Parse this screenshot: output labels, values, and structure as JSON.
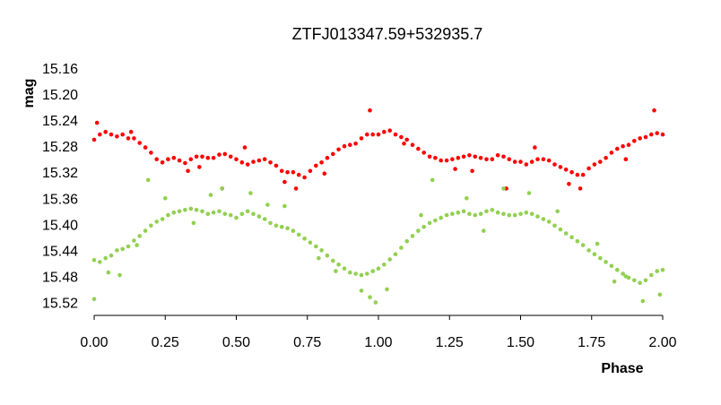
{
  "chart_data": {
    "type": "scatter",
    "title": "ZTFJ013347.59+532935.7",
    "xlabel": "Phase",
    "ylabel": "mag",
    "xlim": [
      0,
      2
    ],
    "ylim": [
      15.16,
      15.54
    ],
    "y_inverted": true,
    "grid": false,
    "legend": "none",
    "x_ticks": [
      "0.00",
      "0.25",
      "0.50",
      "0.75",
      "1.00",
      "1.25",
      "1.50",
      "1.75",
      "2.00"
    ],
    "y_ticks": [
      "15.16",
      "15.20",
      "15.24",
      "15.28",
      "15.32",
      "15.36",
      "15.40",
      "15.44",
      "15.48",
      "15.52"
    ],
    "series": [
      {
        "color": "#ff0000",
        "points": [
          [
            0.0,
            15.27
          ],
          [
            0.02,
            15.262
          ],
          [
            0.04,
            15.258
          ],
          [
            0.06,
            15.262
          ],
          [
            0.08,
            15.265
          ],
          [
            0.1,
            15.262
          ],
          [
            0.12,
            15.268
          ],
          [
            0.14,
            15.268
          ],
          [
            0.16,
            15.275
          ],
          [
            0.18,
            15.282
          ],
          [
            0.2,
            15.29
          ],
          [
            0.22,
            15.3
          ],
          [
            0.24,
            15.305
          ],
          [
            0.26,
            15.3
          ],
          [
            0.28,
            15.298
          ],
          [
            0.3,
            15.302
          ],
          [
            0.32,
            15.306
          ],
          [
            0.34,
            15.3
          ],
          [
            0.36,
            15.296
          ],
          [
            0.38,
            15.296
          ],
          [
            0.4,
            15.298
          ],
          [
            0.42,
            15.298
          ],
          [
            0.44,
            15.293
          ],
          [
            0.46,
            15.292
          ],
          [
            0.48,
            15.296
          ],
          [
            0.5,
            15.3
          ],
          [
            0.52,
            15.305
          ],
          [
            0.54,
            15.308
          ],
          [
            0.56,
            15.304
          ],
          [
            0.58,
            15.302
          ],
          [
            0.6,
            15.3
          ],
          [
            0.62,
            15.305
          ],
          [
            0.64,
            15.31
          ],
          [
            0.66,
            15.318
          ],
          [
            0.68,
            15.32
          ],
          [
            0.7,
            15.32
          ],
          [
            0.72,
            15.324
          ],
          [
            0.74,
            15.328
          ],
          [
            0.76,
            15.318
          ],
          [
            0.78,
            15.31
          ],
          [
            0.8,
            15.305
          ],
          [
            0.82,
            15.298
          ],
          [
            0.84,
            15.292
          ],
          [
            0.86,
            15.285
          ],
          [
            0.88,
            15.28
          ],
          [
            0.9,
            15.278
          ],
          [
            0.92,
            15.276
          ],
          [
            0.94,
            15.268
          ],
          [
            0.96,
            15.262
          ],
          [
            0.98,
            15.262
          ],
          [
            1.0,
            15.262
          ],
          [
            1.02,
            15.258
          ],
          [
            1.04,
            15.256
          ],
          [
            1.06,
            15.262
          ],
          [
            1.08,
            15.266
          ],
          [
            1.1,
            15.27
          ],
          [
            1.12,
            15.278
          ],
          [
            1.14,
            15.284
          ],
          [
            1.16,
            15.29
          ],
          [
            1.18,
            15.296
          ],
          [
            1.2,
            15.298
          ],
          [
            1.22,
            15.302
          ],
          [
            1.24,
            15.302
          ],
          [
            1.26,
            15.3
          ],
          [
            1.28,
            15.298
          ],
          [
            1.3,
            15.296
          ],
          [
            1.32,
            15.294
          ],
          [
            1.34,
            15.296
          ],
          [
            1.36,
            15.298
          ],
          [
            1.38,
            15.3
          ],
          [
            1.4,
            15.3
          ],
          [
            1.42,
            15.294
          ],
          [
            1.44,
            15.296
          ],
          [
            1.46,
            15.3
          ],
          [
            1.48,
            15.304
          ],
          [
            1.5,
            15.304
          ],
          [
            1.52,
            15.308
          ],
          [
            1.54,
            15.304
          ],
          [
            1.56,
            15.3
          ],
          [
            1.58,
            15.3
          ],
          [
            1.6,
            15.302
          ],
          [
            1.62,
            15.308
          ],
          [
            1.64,
            15.312
          ],
          [
            1.66,
            15.316
          ],
          [
            1.68,
            15.32
          ],
          [
            1.7,
            15.324
          ],
          [
            1.72,
            15.324
          ],
          [
            1.74,
            15.314
          ],
          [
            1.76,
            15.308
          ],
          [
            1.78,
            15.304
          ],
          [
            1.8,
            15.298
          ],
          [
            1.82,
            15.29
          ],
          [
            1.84,
            15.284
          ],
          [
            1.86,
            15.28
          ],
          [
            1.88,
            15.278
          ],
          [
            1.9,
            15.272
          ],
          [
            1.92,
            15.268
          ],
          [
            1.94,
            15.266
          ],
          [
            1.96,
            15.262
          ],
          [
            1.98,
            15.26
          ],
          [
            2.0,
            15.262
          ],
          [
            0.01,
            15.244
          ],
          [
            0.13,
            15.258
          ],
          [
            0.37,
            15.312
          ],
          [
            0.45,
            15.345
          ],
          [
            0.53,
            15.282
          ],
          [
            0.71,
            15.345
          ],
          [
            0.81,
            15.322
          ],
          [
            0.97,
            15.225
          ],
          [
            1.09,
            15.276
          ],
          [
            1.27,
            15.315
          ],
          [
            1.45,
            15.345
          ],
          [
            1.55,
            15.282
          ],
          [
            1.71,
            15.345
          ],
          [
            1.87,
            15.3
          ],
          [
            1.97,
            15.225
          ],
          [
            0.33,
            15.318
          ],
          [
            0.67,
            15.335
          ],
          [
            1.33,
            15.318
          ],
          [
            1.67,
            15.338
          ]
        ]
      },
      {
        "color": "#92d050",
        "points": [
          [
            0.0,
            15.455
          ],
          [
            0.02,
            15.458
          ],
          [
            0.04,
            15.452
          ],
          [
            0.06,
            15.448
          ],
          [
            0.08,
            15.44
          ],
          [
            0.1,
            15.438
          ],
          [
            0.12,
            15.434
          ],
          [
            0.14,
            15.425
          ],
          [
            0.16,
            15.418
          ],
          [
            0.18,
            15.41
          ],
          [
            0.2,
            15.402
          ],
          [
            0.22,
            15.396
          ],
          [
            0.24,
            15.392
          ],
          [
            0.26,
            15.386
          ],
          [
            0.28,
            15.382
          ],
          [
            0.3,
            15.38
          ],
          [
            0.32,
            15.378
          ],
          [
            0.34,
            15.376
          ],
          [
            0.36,
            15.378
          ],
          [
            0.38,
            15.38
          ],
          [
            0.4,
            15.384
          ],
          [
            0.42,
            15.382
          ],
          [
            0.44,
            15.38
          ],
          [
            0.46,
            15.384
          ],
          [
            0.48,
            15.386
          ],
          [
            0.5,
            15.39
          ],
          [
            0.52,
            15.384
          ],
          [
            0.54,
            15.38
          ],
          [
            0.56,
            15.384
          ],
          [
            0.58,
            15.388
          ],
          [
            0.6,
            15.392
          ],
          [
            0.62,
            15.398
          ],
          [
            0.64,
            15.402
          ],
          [
            0.66,
            15.404
          ],
          [
            0.68,
            15.406
          ],
          [
            0.7,
            15.41
          ],
          [
            0.72,
            15.416
          ],
          [
            0.74,
            15.422
          ],
          [
            0.76,
            15.428
          ],
          [
            0.78,
            15.434
          ],
          [
            0.8,
            15.44
          ],
          [
            0.82,
            15.448
          ],
          [
            0.84,
            15.456
          ],
          [
            0.86,
            15.462
          ],
          [
            0.88,
            15.468
          ],
          [
            0.9,
            15.474
          ],
          [
            0.92,
            15.476
          ],
          [
            0.94,
            15.478
          ],
          [
            0.96,
            15.476
          ],
          [
            0.98,
            15.472
          ],
          [
            1.0,
            15.468
          ],
          [
            1.02,
            15.462
          ],
          [
            1.04,
            15.454
          ],
          [
            1.06,
            15.446
          ],
          [
            1.08,
            15.436
          ],
          [
            1.1,
            15.426
          ],
          [
            1.12,
            15.418
          ],
          [
            1.14,
            15.41
          ],
          [
            1.16,
            15.404
          ],
          [
            1.18,
            15.398
          ],
          [
            1.2,
            15.394
          ],
          [
            1.22,
            15.39
          ],
          [
            1.24,
            15.386
          ],
          [
            1.26,
            15.384
          ],
          [
            1.28,
            15.382
          ],
          [
            1.3,
            15.38
          ],
          [
            1.32,
            15.384
          ],
          [
            1.34,
            15.386
          ],
          [
            1.36,
            15.384
          ],
          [
            1.38,
            15.38
          ],
          [
            1.4,
            15.378
          ],
          [
            1.42,
            15.382
          ],
          [
            1.44,
            15.384
          ],
          [
            1.46,
            15.386
          ],
          [
            1.48,
            15.386
          ],
          [
            1.5,
            15.384
          ],
          [
            1.52,
            15.382
          ],
          [
            1.54,
            15.384
          ],
          [
            1.56,
            15.388
          ],
          [
            1.58,
            15.392
          ],
          [
            1.6,
            15.396
          ],
          [
            1.62,
            15.402
          ],
          [
            1.64,
            15.408
          ],
          [
            1.66,
            15.414
          ],
          [
            1.68,
            15.42
          ],
          [
            1.7,
            15.426
          ],
          [
            1.72,
            15.432
          ],
          [
            1.74,
            15.44
          ],
          [
            1.76,
            15.446
          ],
          [
            1.78,
            15.452
          ],
          [
            1.8,
            15.458
          ],
          [
            1.82,
            15.464
          ],
          [
            1.84,
            15.47
          ],
          [
            1.86,
            15.476
          ],
          [
            1.88,
            15.482
          ],
          [
            1.9,
            15.486
          ],
          [
            1.92,
            15.49
          ],
          [
            1.94,
            15.486
          ],
          [
            1.96,
            15.478
          ],
          [
            1.98,
            15.472
          ],
          [
            2.0,
            15.47
          ],
          [
            0.0,
            15.515
          ],
          [
            0.05,
            15.474
          ],
          [
            0.09,
            15.478
          ],
          [
            0.19,
            15.332
          ],
          [
            0.25,
            15.36
          ],
          [
            0.41,
            15.355
          ],
          [
            0.45,
            15.345
          ],
          [
            0.55,
            15.352
          ],
          [
            0.67,
            15.372
          ],
          [
            0.85,
            15.472
          ],
          [
            0.94,
            15.502
          ],
          [
            0.97,
            15.512
          ],
          [
            0.99,
            15.52
          ],
          [
            1.03,
            15.5
          ],
          [
            1.19,
            15.332
          ],
          [
            1.31,
            15.36
          ],
          [
            1.44,
            15.345
          ],
          [
            1.53,
            15.352
          ],
          [
            1.77,
            15.43
          ],
          [
            1.87,
            15.48
          ],
          [
            1.93,
            15.518
          ],
          [
            1.99,
            15.508
          ],
          [
            0.15,
            15.432
          ],
          [
            0.35,
            15.398
          ],
          [
            0.61,
            15.37
          ],
          [
            0.79,
            15.452
          ],
          [
            1.15,
            15.386
          ],
          [
            1.37,
            15.41
          ],
          [
            1.63,
            15.38
          ],
          [
            1.83,
            15.488
          ]
        ]
      }
    ]
  }
}
